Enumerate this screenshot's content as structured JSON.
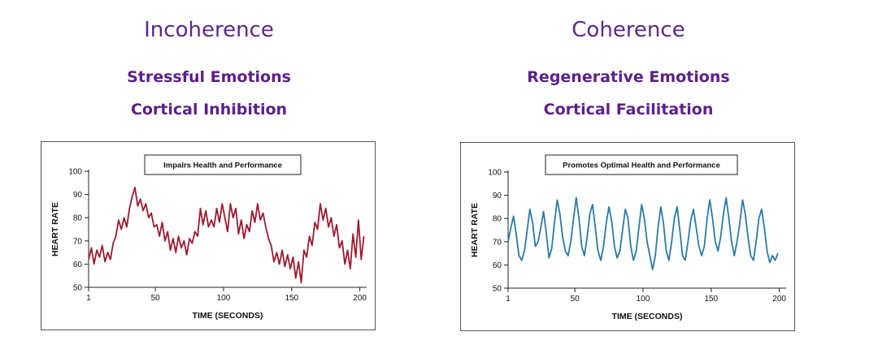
{
  "left": {
    "heading": "Incoherence",
    "line1": "Stressful Emotions",
    "line2": "Cortical Inhibition"
  },
  "right": {
    "heading": "Coherence",
    "line1": "Regenerative Emotions",
    "line2": "Cortical Facilitation"
  },
  "colors": {
    "heading": "#5b2a86",
    "incoherence_line": "#9b1b30",
    "coherence_line": "#2a7aa8"
  },
  "chart_data": [
    {
      "type": "line",
      "title": "Impairs Health and Performance",
      "xlabel": "TIME (SECONDS)",
      "ylabel": "HEART RATE",
      "xlim": [
        1,
        205
      ],
      "ylim": [
        50,
        100
      ],
      "xticks": [
        1,
        50,
        100,
        150,
        200
      ],
      "yticks": [
        50,
        60,
        70,
        80,
        90,
        100
      ],
      "grid": false,
      "series": [
        {
          "x": [
            1,
            3,
            5,
            7,
            9,
            11,
            13,
            15,
            17,
            19,
            21,
            23,
            25,
            27,
            29,
            31,
            33,
            35,
            37,
            39,
            41,
            43,
            45,
            47,
            49,
            51,
            53,
            55,
            57,
            59,
            61,
            63,
            65,
            67,
            69,
            71,
            73,
            75,
            77,
            79,
            81,
            83,
            85,
            87,
            89,
            91,
            93,
            95,
            97,
            99,
            101,
            103,
            105,
            107,
            109,
            111,
            113,
            115,
            117,
            119,
            121,
            123,
            125,
            127,
            129,
            131,
            133,
            135,
            137,
            139,
            141,
            143,
            145,
            147,
            149,
            151,
            153,
            155,
            157,
            159,
            161,
            163,
            165,
            167,
            169,
            171,
            173,
            175,
            177,
            179,
            181,
            183,
            185,
            187,
            189,
            191,
            193,
            195,
            197,
            199,
            201,
            203
          ],
          "y": [
            62,
            67,
            60,
            66,
            63,
            68,
            61,
            65,
            62,
            69,
            72,
            79,
            75,
            80,
            76,
            84,
            89,
            93,
            85,
            88,
            83,
            86,
            80,
            82,
            76,
            77,
            72,
            78,
            70,
            74,
            66,
            71,
            65,
            72,
            67,
            70,
            64,
            71,
            69,
            74,
            72,
            84,
            77,
            83,
            76,
            79,
            76,
            84,
            78,
            86,
            80,
            74,
            86,
            80,
            84,
            73,
            79,
            71,
            77,
            74,
            83,
            78,
            86,
            79,
            82,
            76,
            71,
            68,
            61,
            65,
            60,
            66,
            59,
            64,
            58,
            63,
            54,
            61,
            52,
            66,
            63,
            72,
            68,
            78,
            75,
            86,
            79,
            84,
            76,
            80,
            72,
            77,
            67,
            70,
            60,
            66,
            58,
            73,
            63,
            79,
            62,
            72
          ]
        }
      ]
    },
    {
      "type": "line",
      "title": "Promotes Optimal Health and Performance",
      "xlabel": "TIME (SECONDS)",
      "ylabel": "HEART RATE",
      "xlim": [
        1,
        205
      ],
      "ylim": [
        50,
        100
      ],
      "xticks": [
        1,
        50,
        100,
        150,
        200
      ],
      "yticks": [
        50,
        60,
        70,
        80,
        90,
        100
      ],
      "grid": false,
      "series": [
        {
          "x": [
            1,
            3,
            5,
            7,
            9,
            11,
            13,
            15,
            17,
            19,
            21,
            23,
            25,
            27,
            29,
            31,
            33,
            35,
            37,
            39,
            41,
            43,
            45,
            47,
            49,
            51,
            53,
            55,
            57,
            59,
            61,
            63,
            65,
            67,
            69,
            71,
            73,
            75,
            77,
            79,
            81,
            83,
            85,
            87,
            89,
            91,
            93,
            95,
            97,
            99,
            101,
            103,
            105,
            107,
            109,
            111,
            113,
            115,
            117,
            119,
            121,
            123,
            125,
            127,
            129,
            131,
            133,
            135,
            137,
            139,
            141,
            143,
            145,
            147,
            149,
            151,
            153,
            155,
            157,
            159,
            161,
            163,
            165,
            167,
            169,
            171,
            173,
            175,
            177,
            179,
            181,
            183,
            185,
            187,
            189,
            191,
            193,
            195,
            197,
            199
          ],
          "y": [
            70,
            76,
            81,
            73,
            64,
            62,
            66,
            75,
            84,
            78,
            68,
            70,
            76,
            83,
            74,
            63,
            67,
            78,
            88,
            82,
            72,
            66,
            64,
            70,
            80,
            89,
            80,
            68,
            64,
            72,
            82,
            86,
            76,
            66,
            62,
            68,
            78,
            85,
            79,
            68,
            63,
            66,
            75,
            84,
            80,
            68,
            62,
            66,
            76,
            86,
            80,
            70,
            64,
            58,
            64,
            76,
            85,
            78,
            66,
            62,
            70,
            80,
            85,
            75,
            64,
            62,
            70,
            79,
            84,
            76,
            68,
            64,
            68,
            80,
            88,
            80,
            70,
            66,
            72,
            82,
            89,
            80,
            70,
            64,
            70,
            78,
            88,
            82,
            72,
            64,
            62,
            70,
            80,
            84,
            76,
            66,
            61,
            64,
            62,
            65
          ]
        }
      ]
    }
  ]
}
